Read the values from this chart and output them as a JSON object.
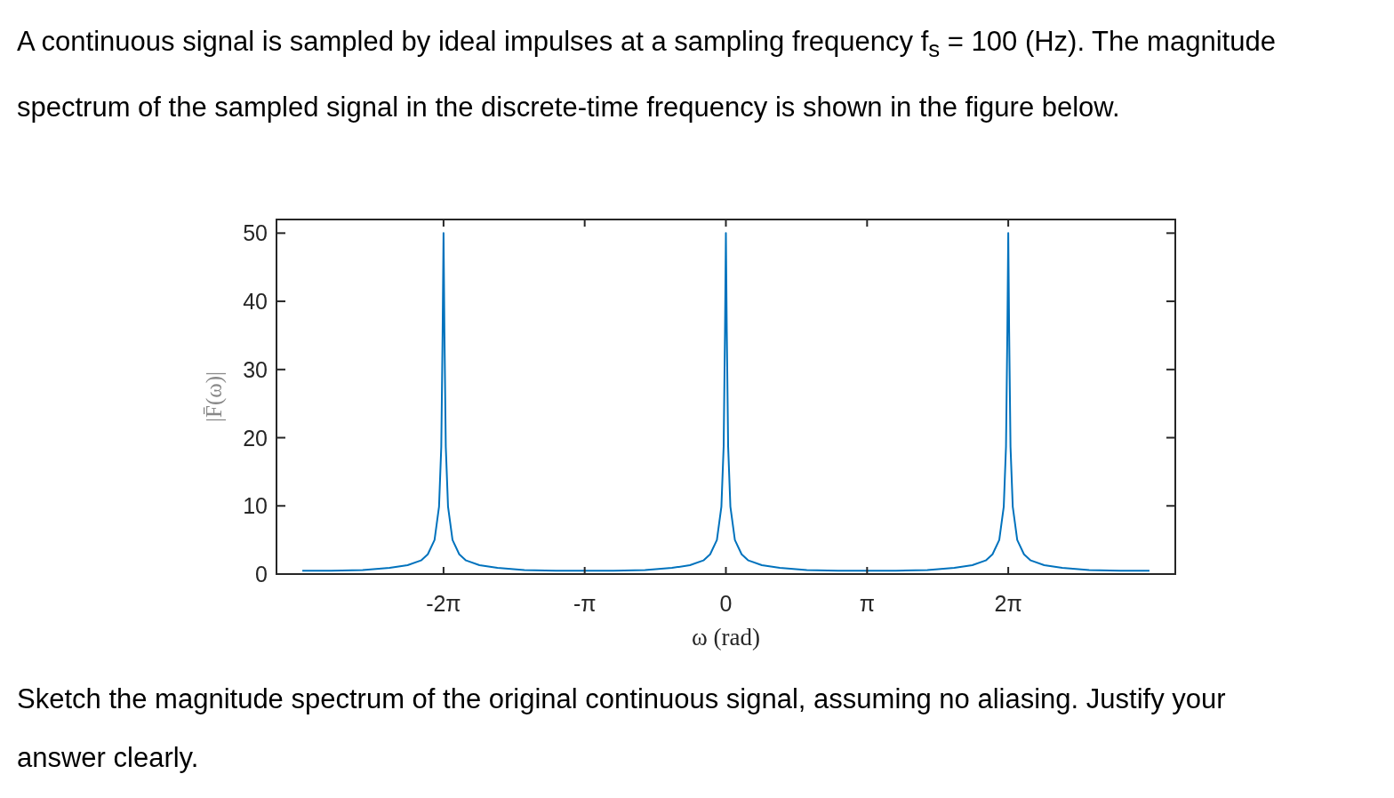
{
  "chart_data": {
    "type": "line",
    "title": "A continuous signal is sampled by ideal impulses at a sampling frequency f$_{s}$ = 100 (Hz). The magnitude spectrum of the sampled signal in the discrete-time frequency is shown in the figure below.",
    "xlabel": "ω (rad)",
    "ylabel": "|F̄(ω)|",
    "annotations": [
      "Sketch the magnitude spectrum of the original continuous signal, assuming no aliasing. Justify your answer clearly."
    ],
    "xlim": [
      -10,
      10
    ],
    "ylim": [
      0,
      52
    ],
    "xticks": [
      {
        "value": -6.283,
        "label": "-2π"
      },
      {
        "value": -3.142,
        "label": "-π"
      },
      0,
      {
        "value": 3.142,
        "label": "π"
      },
      {
        "value": 6.283,
        "label": "2π"
      }
    ],
    "yticks": [
      0,
      10,
      20,
      30,
      40,
      50
    ],
    "grid": false,
    "marker": "none",
    "line_style": "solid",
    "series": [
      {
        "color": "#0072bd",
        "x": [
          -9.425,
          -8.783,
          -8.083,
          -7.483,
          -7.083,
          -6.783,
          -6.633,
          -6.483,
          -6.383,
          -6.333,
          -6.303,
          -6.283,
          -6.263,
          -6.233,
          -6.183,
          -6.083,
          -5.933,
          -5.783,
          -5.483,
          -5.083,
          -4.483,
          -3.783,
          -3.142,
          -2.5,
          -1.8,
          -1.2,
          -0.8,
          -0.5,
          -0.35,
          -0.2,
          -0.1,
          -0.05,
          -0.02,
          0,
          0.02,
          0.05,
          0.1,
          0.2,
          0.35,
          0.5,
          0.8,
          1.2,
          1.8,
          2.5,
          3.142,
          3.783,
          4.483,
          5.083,
          5.483,
          5.783,
          5.933,
          6.083,
          6.183,
          6.233,
          6.263,
          6.283,
          6.303,
          6.333,
          6.383,
          6.483,
          6.633,
          6.783,
          7.083,
          7.483,
          8.083,
          8.783,
          9.425
        ],
        "values": [
          0.5,
          0.5,
          0.6,
          0.9,
          1.3,
          2,
          2.9,
          5,
          9.9,
          18.7,
          35.5,
          50,
          35.5,
          18.7,
          9.9,
          5,
          2.9,
          2,
          1.3,
          0.9,
          0.6,
          0.5,
          0.5,
          0.5,
          0.6,
          0.9,
          1.3,
          2,
          2.9,
          5,
          9.9,
          18.7,
          35.5,
          50,
          35.5,
          18.7,
          9.9,
          5,
          2.9,
          2,
          1.3,
          0.9,
          0.6,
          0.5,
          0.5,
          0.5,
          0.6,
          0.9,
          1.3,
          2,
          2.9,
          5,
          9.9,
          18.7,
          35.5,
          50,
          35.5,
          18.7,
          9.9,
          5,
          2.9,
          2,
          1.3,
          0.9,
          0.6,
          0.5,
          0.5
        ]
      }
    ]
  }
}
